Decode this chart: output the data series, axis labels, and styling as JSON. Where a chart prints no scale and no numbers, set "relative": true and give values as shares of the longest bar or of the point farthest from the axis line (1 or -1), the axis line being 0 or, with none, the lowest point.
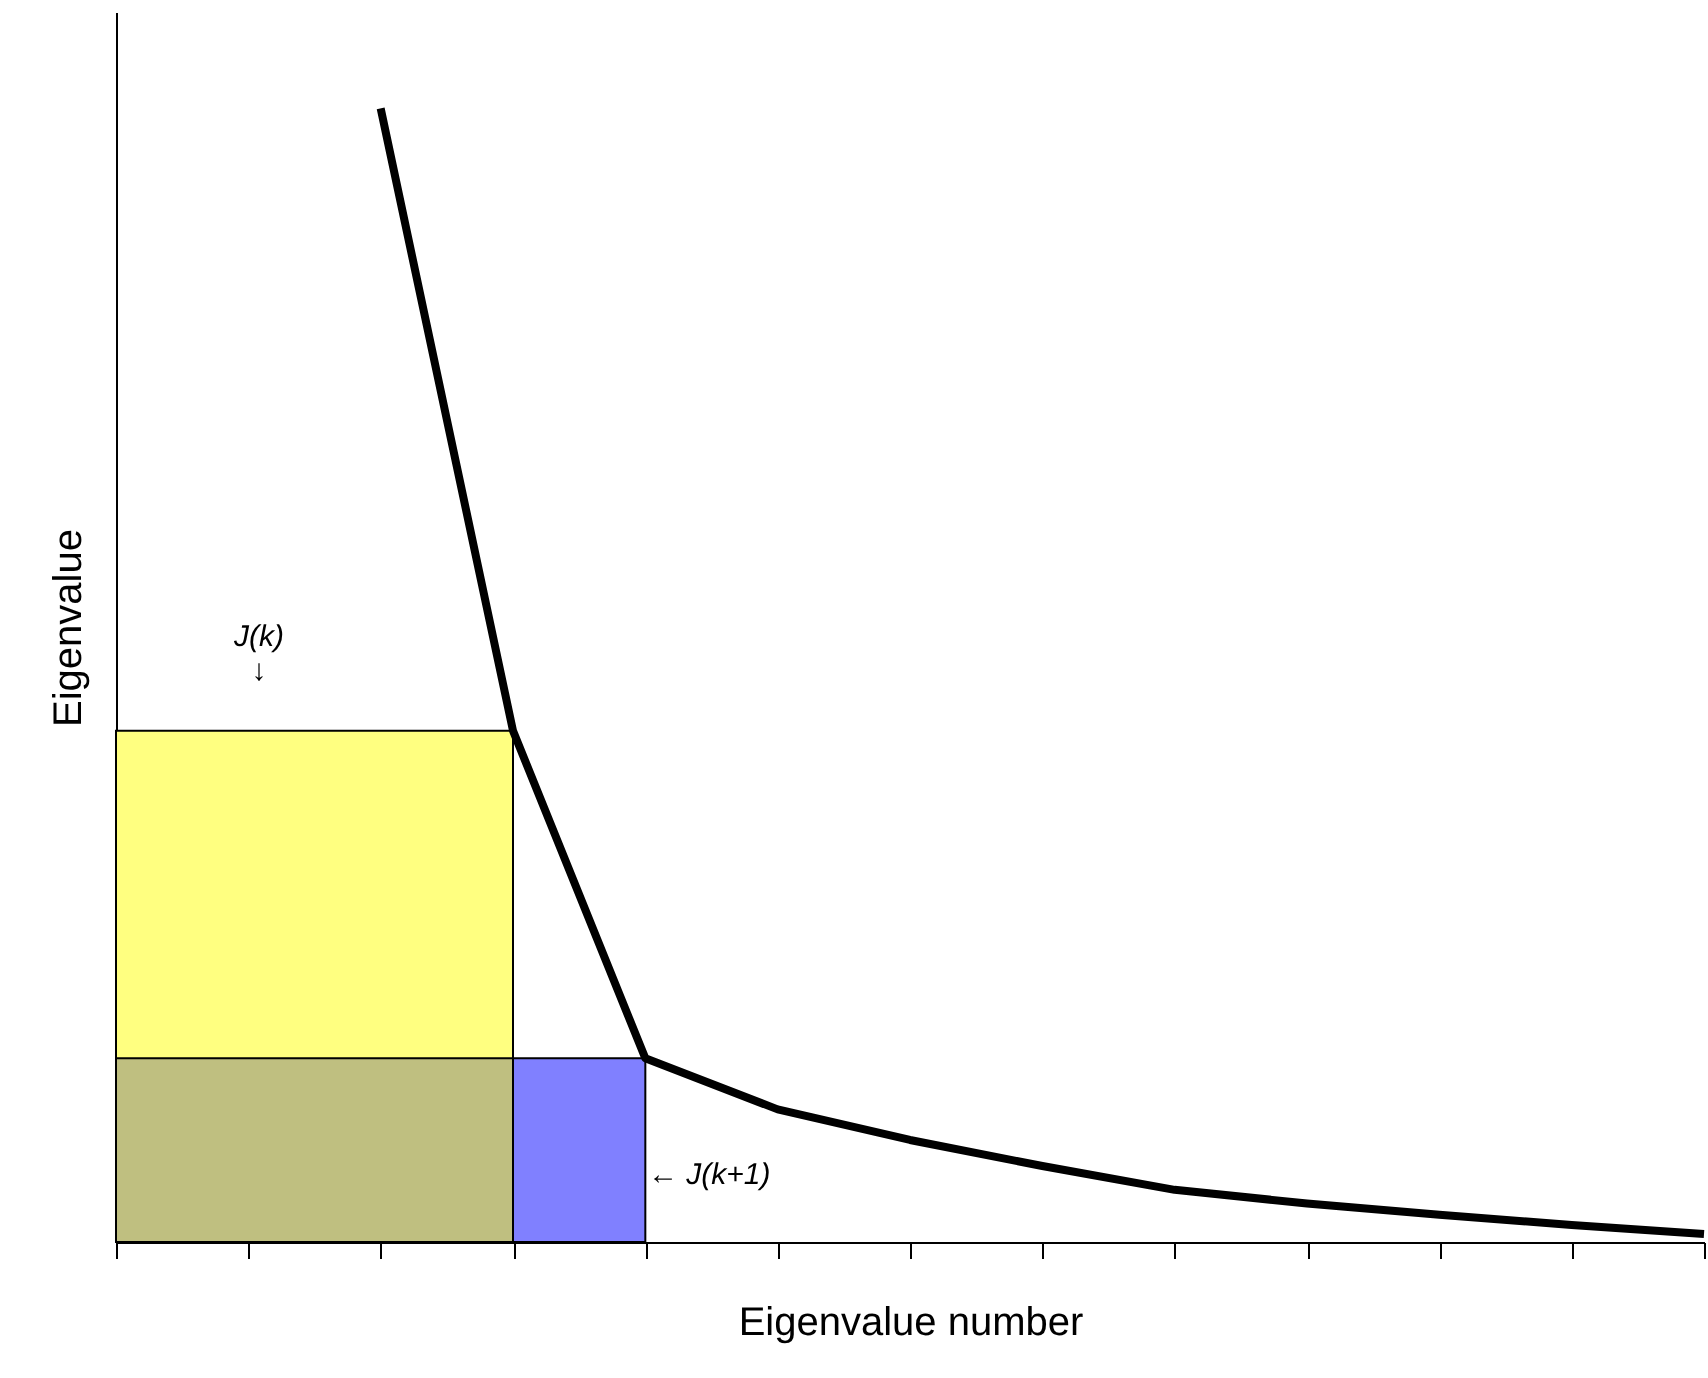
{
  "chart_data": {
    "type": "line",
    "relative": true,
    "xlabel": "Eigenvalue number",
    "ylabel": "Eigenvalue",
    "categories": [
      null,
      null,
      null,
      null,
      null,
      null,
      null,
      null,
      null,
      null,
      null,
      null,
      null
    ],
    "series": [
      {
        "type": "area",
        "color": "#ffff80",
        "values": [
          0.451,
          0.451,
          0.451,
          0.451,
          null,
          null,
          null,
          null,
          null,
          null,
          null,
          null,
          null
        ]
      },
      {
        "type": "area",
        "color": "#bfbf80",
        "values": [
          0.162,
          0.162,
          0.162,
          0.162,
          null,
          null,
          null,
          null,
          null,
          null,
          null,
          null,
          null
        ]
      },
      {
        "type": "area",
        "color": "#8080ff",
        "values": [
          null,
          null,
          null,
          0.162,
          0.162,
          null,
          null,
          null,
          null,
          null,
          null,
          null,
          null
        ]
      },
      {
        "color": "#000000",
        "values": [
          null,
          null,
          1.0,
          0.451,
          0.162,
          0.117,
          0.09,
          0.067,
          0.046,
          0.034,
          0.024,
          0.015,
          0.007
        ]
      }
    ],
    "annotations": [
      "J(k)\n↓",
      "← J(k+1)"
    ],
    "grid": false,
    "line_style": "solid",
    "marker": "none"
  }
}
